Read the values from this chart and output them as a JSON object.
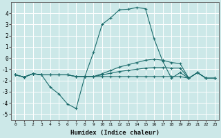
{
  "xlabel": "Humidex (Indice chaleur)",
  "ylabel": "",
  "xlim": [
    -0.5,
    23.5
  ],
  "ylim": [
    -5.5,
    5.0
  ],
  "yticks": [
    -5,
    -4,
    -3,
    -2,
    -1,
    0,
    1,
    2,
    3,
    4
  ],
  "xticks": [
    0,
    1,
    2,
    3,
    4,
    5,
    6,
    7,
    8,
    9,
    10,
    11,
    12,
    13,
    14,
    15,
    16,
    17,
    18,
    19,
    20,
    21,
    22,
    23
  ],
  "bg_color": "#cce8e8",
  "line_color": "#1a6b6b",
  "grid_color": "#ffffff",
  "lines": [
    {
      "x": [
        0,
        1,
        2,
        3,
        4,
        5,
        6,
        7,
        8,
        9,
        10,
        11,
        12,
        13,
        14,
        15,
        16,
        17,
        18,
        19,
        20,
        21,
        22,
        23
      ],
      "y": [
        -1.5,
        -1.7,
        -1.4,
        -1.5,
        -2.6,
        -3.2,
        -4.1,
        -4.5,
        -1.65,
        0.5,
        3.0,
        3.6,
        4.3,
        4.35,
        4.5,
        4.4,
        1.7,
        -0.3,
        -1.8,
        -1.3,
        -1.8,
        -1.3,
        -1.8,
        -1.8
      ]
    },
    {
      "x": [
        0,
        1,
        2,
        3,
        4,
        5,
        6,
        7,
        8,
        9,
        10,
        11,
        12,
        13,
        14,
        15,
        16,
        17,
        18,
        19,
        20,
        21,
        22,
        23
      ],
      "y": [
        -1.5,
        -1.7,
        -1.4,
        -1.5,
        -1.5,
        -1.5,
        -1.5,
        -1.65,
        -1.65,
        -1.65,
        -1.65,
        -1.65,
        -1.65,
        -1.65,
        -1.65,
        -1.65,
        -1.65,
        -1.65,
        -1.65,
        -1.65,
        -1.8,
        -1.3,
        -1.8,
        -1.8
      ]
    },
    {
      "x": [
        0,
        1,
        2,
        3,
        4,
        5,
        6,
        7,
        8,
        9,
        10,
        11,
        12,
        13,
        14,
        15,
        16,
        17,
        18,
        19,
        20,
        21,
        22,
        23
      ],
      "y": [
        -1.5,
        -1.7,
        -1.4,
        -1.5,
        -1.5,
        -1.5,
        -1.5,
        -1.65,
        -1.65,
        -1.65,
        -1.4,
        -1.1,
        -0.8,
        -0.6,
        -0.4,
        -0.2,
        -0.1,
        -0.2,
        -0.4,
        -0.5,
        -1.8,
        -1.3,
        -1.8,
        -1.8
      ]
    },
    {
      "x": [
        0,
        1,
        2,
        3,
        4,
        5,
        6,
        7,
        8,
        9,
        10,
        11,
        12,
        13,
        14,
        15,
        16,
        17,
        18,
        19,
        20,
        21,
        22,
        23
      ],
      "y": [
        -1.5,
        -1.7,
        -1.4,
        -1.5,
        -1.5,
        -1.5,
        -1.5,
        -1.65,
        -1.65,
        -1.65,
        -1.5,
        -1.35,
        -1.2,
        -1.1,
        -1.0,
        -0.9,
        -0.85,
        -0.85,
        -0.9,
        -0.9,
        -1.8,
        -1.3,
        -1.8,
        -1.8
      ]
    }
  ]
}
